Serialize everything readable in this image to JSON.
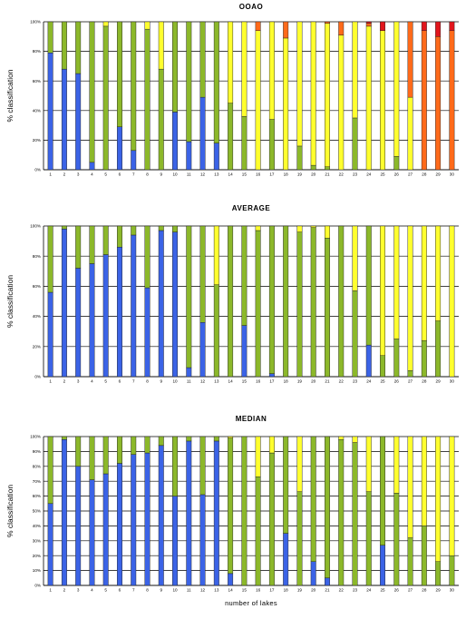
{
  "colors": {
    "class1": "#3b63e6",
    "class2": "#8cb82a",
    "class3": "#ffff2e",
    "class4": "#ff6a1a",
    "class5": "#e2151c",
    "gridline": "#000000",
    "bar_outline": "#222222"
  },
  "figure": {
    "xlabel": "number of lakes"
  },
  "chart_data": [
    {
      "type": "bar",
      "stacked": true,
      "title": "OOAO",
      "ylabel": "% classification",
      "xlabel": "",
      "yticks": [
        "0%",
        "20%",
        "40%",
        "60%",
        "80%",
        "100%"
      ],
      "ylim": [
        0,
        100
      ],
      "grid": true,
      "categories": [
        "1",
        "2",
        "3",
        "4",
        "5",
        "6",
        "7",
        "8",
        "9",
        "10",
        "11",
        "12",
        "13",
        "14",
        "15",
        "16",
        "17",
        "18",
        "19",
        "20",
        "21",
        "22",
        "23",
        "24",
        "25",
        "26",
        "27",
        "28",
        "29",
        "30"
      ],
      "series": [
        {
          "color_key": "class1",
          "values": [
            79,
            68,
            65,
            5,
            0,
            29,
            13,
            0,
            0,
            39,
            19,
            49,
            18,
            0,
            0,
            0,
            0,
            0,
            0,
            0,
            0,
            0,
            0,
            0,
            0,
            0,
            0,
            0,
            0,
            0
          ]
        },
        {
          "color_key": "class2",
          "values": [
            21,
            32,
            35,
            95,
            97,
            71,
            87,
            95,
            68,
            61,
            81,
            51,
            82,
            45,
            36,
            0,
            34,
            0,
            16,
            3,
            2,
            0,
            35,
            0,
            0,
            9,
            0,
            0,
            0,
            0
          ]
        },
        {
          "color_key": "class3",
          "values": [
            0,
            0,
            0,
            0,
            3,
            0,
            0,
            5,
            32,
            0,
            0,
            0,
            0,
            55,
            64,
            94,
            66,
            89,
            84,
            97,
            97,
            91,
            65,
            97,
            94,
            91,
            49,
            0,
            0,
            0
          ]
        },
        {
          "color_key": "class4",
          "values": [
            0,
            0,
            0,
            0,
            0,
            0,
            0,
            0,
            0,
            0,
            0,
            0,
            0,
            0,
            0,
            6,
            0,
            11,
            0,
            0,
            1,
            9,
            0,
            2,
            0,
            0,
            51,
            94,
            90,
            94
          ]
        },
        {
          "color_key": "class5",
          "values": [
            0,
            0,
            0,
            0,
            0,
            0,
            0,
            0,
            0,
            0,
            0,
            0,
            0,
            0,
            0,
            0,
            0,
            0,
            0,
            0,
            0,
            0,
            0,
            1,
            6,
            0,
            0,
            6,
            10,
            6
          ]
        }
      ]
    },
    {
      "type": "bar",
      "stacked": true,
      "title": "AVERAGE",
      "ylabel": "% classification",
      "xlabel": "",
      "yticks": [
        "0%",
        "20%",
        "40%",
        "60%",
        "80%",
        "100%"
      ],
      "ylim": [
        0,
        100
      ],
      "grid": true,
      "categories": [
        "1",
        "2",
        "3",
        "4",
        "5",
        "6",
        "7",
        "8",
        "9",
        "10",
        "11",
        "12",
        "13",
        "14",
        "15",
        "16",
        "17",
        "18",
        "19",
        "20",
        "21",
        "22",
        "23",
        "24",
        "25",
        "26",
        "27",
        "28",
        "29",
        "30"
      ],
      "series": [
        {
          "color_key": "class1",
          "values": [
            56,
            98,
            72,
            75,
            81,
            86,
            94,
            59,
            97,
            96,
            6,
            36,
            0,
            0,
            34,
            0,
            2,
            0,
            0,
            0,
            0,
            0,
            0,
            21,
            0,
            0,
            0,
            0,
            0,
            0
          ]
        },
        {
          "color_key": "class2",
          "values": [
            44,
            2,
            28,
            25,
            19,
            14,
            6,
            41,
            3,
            4,
            94,
            64,
            61,
            100,
            66,
            97,
            98,
            100,
            96,
            99,
            92,
            100,
            57,
            79,
            14,
            25,
            4,
            24,
            37,
            0
          ]
        },
        {
          "color_key": "class3",
          "values": [
            0,
            0,
            0,
            0,
            0,
            0,
            0,
            0,
            0,
            0,
            0,
            0,
            39,
            0,
            0,
            3,
            0,
            0,
            4,
            1,
            8,
            0,
            43,
            0,
            86,
            75,
            96,
            76,
            63,
            100
          ]
        },
        {
          "color_key": "class4",
          "values": [
            0,
            0,
            0,
            0,
            0,
            0,
            0,
            0,
            0,
            0,
            0,
            0,
            0,
            0,
            0,
            0,
            0,
            0,
            0,
            0,
            0,
            0,
            0,
            0,
            0,
            0,
            0,
            0,
            0,
            0
          ]
        },
        {
          "color_key": "class5",
          "values": [
            0,
            0,
            0,
            0,
            0,
            0,
            0,
            0,
            0,
            0,
            0,
            0,
            0,
            0,
            0,
            0,
            0,
            0,
            0,
            0,
            0,
            0,
            0,
            0,
            0,
            0,
            0,
            0,
            0,
            0
          ]
        }
      ]
    },
    {
      "type": "bar",
      "stacked": true,
      "title": "MEDIAN",
      "ylabel": "% classification",
      "xlabel": "number of lakes",
      "yticks": [
        "0%",
        "10%",
        "20%",
        "30%",
        "40%",
        "50%",
        "60%",
        "70%",
        "80%",
        "90%",
        "100%"
      ],
      "ylim": [
        0,
        100
      ],
      "grid": true,
      "categories": [
        "1",
        "2",
        "3",
        "4",
        "5",
        "6",
        "7",
        "8",
        "9",
        "10",
        "11",
        "12",
        "13",
        "14",
        "15",
        "16",
        "17",
        "18",
        "19",
        "20",
        "21",
        "22",
        "23",
        "24",
        "25",
        "26",
        "27",
        "28",
        "29",
        "30"
      ],
      "series": [
        {
          "color_key": "class1",
          "values": [
            55,
            98,
            80,
            71,
            75,
            82,
            88,
            89,
            94,
            60,
            97,
            61,
            97,
            8,
            0,
            0,
            0,
            35,
            0,
            16,
            5,
            0,
            0,
            0,
            27,
            0,
            0,
            0,
            0,
            0
          ]
        },
        {
          "color_key": "class2",
          "values": [
            45,
            2,
            20,
            29,
            25,
            18,
            12,
            11,
            6,
            40,
            3,
            39,
            3,
            91,
            100,
            73,
            89,
            65,
            63,
            84,
            95,
            98,
            96,
            63,
            73,
            62,
            32,
            40,
            16,
            20
          ]
        },
        {
          "color_key": "class3",
          "values": [
            0,
            0,
            0,
            0,
            0,
            0,
            0,
            0,
            0,
            0,
            0,
            0,
            0,
            1,
            0,
            27,
            11,
            0,
            37,
            0,
            0,
            2,
            4,
            37,
            0,
            38,
            68,
            60,
            84,
            80
          ]
        },
        {
          "color_key": "class4",
          "values": [
            0,
            0,
            0,
            0,
            0,
            0,
            0,
            0,
            0,
            0,
            0,
            0,
            0,
            0,
            0,
            0,
            0,
            0,
            0,
            0,
            0,
            0,
            0,
            0,
            0,
            0,
            0,
            0,
            0,
            0
          ]
        },
        {
          "color_key": "class5",
          "values": [
            0,
            0,
            0,
            0,
            0,
            0,
            0,
            0,
            0,
            0,
            0,
            0,
            0,
            0,
            0,
            0,
            0,
            0,
            0,
            0,
            0,
            0,
            0,
            0,
            0,
            0,
            0,
            0,
            0,
            0
          ]
        }
      ]
    }
  ]
}
